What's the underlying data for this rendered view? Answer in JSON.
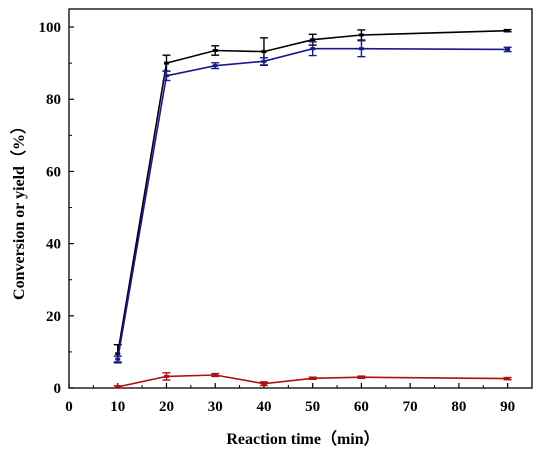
{
  "chart_data": {
    "type": "line",
    "xlabel": "Reaction time（min）",
    "ylabel": "Conversion or yield（%）",
    "xlim": [
      0,
      95
    ],
    "ylim": [
      0,
      105
    ],
    "x_ticks": [
      0,
      10,
      20,
      30,
      40,
      50,
      60,
      70,
      80,
      90
    ],
    "y_ticks": [
      0,
      20,
      40,
      60,
      80,
      100
    ],
    "grid": false,
    "legend": "none",
    "x": [
      10,
      20,
      30,
      40,
      50,
      60,
      90
    ],
    "series": [
      {
        "color": "#000000",
        "values": [
          9.5,
          90.0,
          93.5,
          93.2,
          96.5,
          97.8,
          99.0
        ],
        "errors": [
          2.5,
          2.2,
          1.3,
          3.8,
          1.5,
          1.4,
          0.3
        ]
      },
      {
        "color": "#1a1a8c",
        "values": [
          8.0,
          86.5,
          89.3,
          90.5,
          94.0,
          94.0,
          93.8
        ],
        "errors": [
          0.8,
          1.3,
          0.8,
          1.0,
          1.9,
          2.2,
          0.6
        ]
      },
      {
        "color": "#b01010",
        "values": [
          0.3,
          3.2,
          3.6,
          1.2,
          2.7,
          3.0,
          2.6
        ],
        "errors": [
          0.3,
          1.0,
          0.4,
          0.5,
          0.3,
          0.3,
          0.3
        ]
      }
    ]
  }
}
